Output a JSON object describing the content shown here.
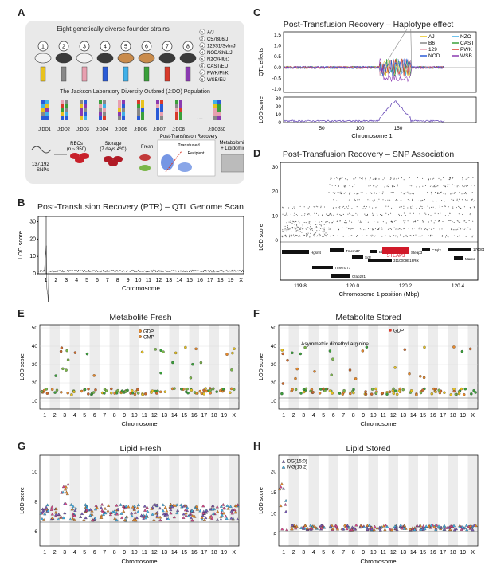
{
  "labels": {
    "A": "A",
    "B": "B",
    "C": "C",
    "D": "D",
    "E": "E",
    "F": "F",
    "G": "G",
    "H": "H"
  },
  "panelA": {
    "title_top": "Eight genetically diverse founder strains",
    "strains": [
      "A/J",
      "C57BL6/J",
      "129S1/SvImJ",
      "NOD/ShiLtJ",
      "NZO/HlLtJ",
      "CAST/EiJ",
      "PWK/PhK",
      "WSB/EiJ"
    ],
    "strain_nums": [
      "1",
      "2",
      "3",
      "4",
      "5",
      "6",
      "7",
      "8"
    ],
    "population_title": "The Jackson Laboratory Diversity Outbred (J:DO) Population",
    "do_labels": [
      "J:DO1",
      "J:DO2",
      "J:DO3",
      "J:DO4",
      "J:DO5",
      "J:DO6",
      "J:DO7",
      "J:DO8",
      "...",
      "J:DO350"
    ],
    "snps": "137,192\nSNPs",
    "rbcs": "RBCs\n(n ~ 350)",
    "storage": "Storage\n(7 days 4ºC)",
    "ptr": "Post-Transfusion Recovery",
    "fresh": "Fresh",
    "transfused": "Transfused",
    "recipient": "Recipient",
    "metab": "Metabolomics\n+ Lipidomics",
    "strain_colors": [
      "#e8c21e",
      "#888888",
      "#e8a0b0",
      "#2a5bd7",
      "#40b0e8",
      "#3aa03a",
      "#d93a2a",
      "#8a3ab0"
    ]
  },
  "panelB": {
    "title": "Post-Transfusion Recovery (PTR) – QTL Genome Scan",
    "ylabel": "LOD score",
    "xlabel": "Chromosome",
    "yticks": [
      "0",
      "10",
      "20",
      "30"
    ],
    "chroms": [
      "1",
      "2",
      "3",
      "4",
      "5",
      "6",
      "7",
      "8",
      "9",
      "10",
      "11",
      "12",
      "13",
      "14",
      "15",
      "16",
      "17",
      "18",
      "19",
      "X"
    ]
  },
  "panelC": {
    "title": "Post-Transfusion Recovery – Haplotype effect",
    "ylabel_top": "QTL effects",
    "ylabel_bottom": "LOD score",
    "xlabel": "Chromosome 1",
    "yticks_top": [
      "-1.0",
      "-0.5",
      "0.0",
      "0.5",
      "1.0",
      "1.5"
    ],
    "yticks_bottom": [
      "0",
      "10",
      "20",
      "30"
    ],
    "xticks": [
      "50",
      "100",
      "150"
    ],
    "legend": [
      {
        "name": "AJ",
        "color": "#e8c21e"
      },
      {
        "name": "NZO",
        "color": "#40b0e8"
      },
      {
        "name": "B6",
        "color": "#888888"
      },
      {
        "name": "CAST",
        "color": "#3aa03a"
      },
      {
        "name": "129",
        "color": "#e8a0b0"
      },
      {
        "name": "PWK",
        "color": "#d93a2a"
      },
      {
        "name": "NOD",
        "color": "#2a5bd7"
      },
      {
        "name": "WSB",
        "color": "#8a3ab0"
      }
    ]
  },
  "panelD": {
    "title": "Post-Transfusion Recovery – SNP Association",
    "ylabel": "LOD score",
    "xlabel": "Chromosome 1 position (Mbp)",
    "yticks": [
      "0",
      "10",
      "20",
      "30"
    ],
    "xticks": [
      "119.8",
      "120.0",
      "120.2",
      "120.4"
    ],
    "genes": [
      "Hgsn4",
      "Tmem37",
      "Sctr",
      "Tmem177",
      "Cfap221",
      "Ebi",
      "Steap3",
      "C1ql2",
      "Marco",
      "1700012D15Rik",
      "3110009E18Rik"
    ],
    "highlight_gene": "STEAP3"
  },
  "panelE": {
    "title": "Metabolite Fresh",
    "ylabel": "LOD score",
    "xlabel": "Chromosome",
    "yticks": [
      "10",
      "20",
      "30",
      "40",
      "50"
    ],
    "legend": [
      {
        "name": "GDP",
        "color": "#e8892a"
      },
      {
        "name": "GMP",
        "color": "#e8892a"
      }
    ],
    "chroms": [
      "1",
      "2",
      "3",
      "4",
      "5",
      "6",
      "7",
      "8",
      "9",
      "10",
      "11",
      "12",
      "13",
      "14",
      "15",
      "16",
      "17",
      "18",
      "19",
      "X"
    ]
  },
  "panelF": {
    "title": "Metabolite Stored",
    "ylabel": "LOD score",
    "xlabel": "Chromosome",
    "yticks": [
      "10",
      "20",
      "30",
      "40",
      "50"
    ],
    "annot1": "Asymmetric dimethyl arginine",
    "annot2": "GDP",
    "chroms": [
      "1",
      "2",
      "3",
      "4",
      "5",
      "6",
      "7",
      "8",
      "9",
      "10",
      "11",
      "12",
      "13",
      "14",
      "15",
      "16",
      "17",
      "18",
      "19",
      "X"
    ]
  },
  "panelG": {
    "title": "Lipid Fresh",
    "ylabel": "LOD score",
    "xlabel": "Chromosome",
    "yticks": [
      "6",
      "8",
      "10"
    ],
    "chroms": [
      "1",
      "2",
      "3",
      "4",
      "5",
      "6",
      "7",
      "8",
      "9",
      "10",
      "11",
      "12",
      "13",
      "14",
      "15",
      "16",
      "17",
      "18",
      "19",
      "X"
    ]
  },
  "panelH": {
    "title": "Lipid Stored",
    "ylabel": "LOD score",
    "xlabel": "Chromosome",
    "yticks": [
      "5",
      "10",
      "15",
      "20"
    ],
    "legend": [
      "DG(15:0)",
      "MG(15:2)"
    ],
    "chroms": [
      "1",
      "2",
      "3",
      "4",
      "5",
      "6",
      "7",
      "8",
      "9",
      "10",
      "11",
      "12",
      "13",
      "14",
      "15",
      "16",
      "17",
      "18",
      "19",
      "X"
    ]
  }
}
